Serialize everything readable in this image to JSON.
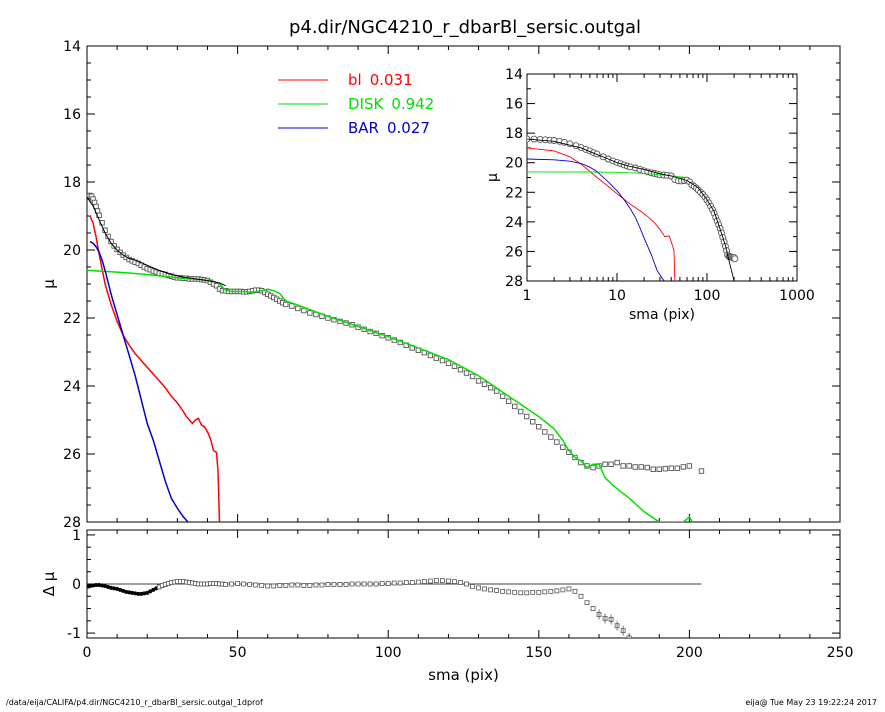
{
  "figure": {
    "title": "p4.dir/NGC4210_r_dbarBl_sersic.outgal",
    "footer_left": "/data/eija/CALIFA/p4.dir/NGC4210_r_dbarBl_sersic.outgal_1dprof",
    "footer_right": "eija@  Tue May 23 19:22:24 2017"
  },
  "colors": {
    "bl": "#ff0000",
    "disk": "#00e000",
    "bar": "#0000d0",
    "model": "#000000",
    "data": "#555555",
    "axis": "#000000"
  },
  "chart_data": [
    {
      "id": "main",
      "type": "line",
      "title": "p4.dir/NGC4210_r_dbarBl_sersic.outgal",
      "xlabel": "",
      "ylabel": "μ",
      "xlim": [
        0,
        250
      ],
      "ylim": [
        28,
        14
      ],
      "y_inverted": true,
      "xticks": [
        0,
        50,
        100,
        150,
        200,
        250
      ],
      "yticks": [
        14,
        16,
        18,
        20,
        22,
        24,
        26,
        28
      ],
      "ytick_labels": [
        "14",
        "16",
        "18",
        "20",
        "22",
        "24",
        "26",
        "28"
      ],
      "legend": [
        {
          "name": "bl",
          "value": "0.031",
          "color": "#ff0000"
        },
        {
          "name": "DISK",
          "value": "0.942",
          "color": "#00e000"
        },
        {
          "name": "BAR",
          "value": "0.027",
          "color": "#0000d0"
        }
      ],
      "legend_position": "top-center",
      "series": [
        {
          "name": "bl",
          "color": "#ff0000",
          "x": [
            1,
            2,
            3,
            4,
            6,
            8,
            10,
            12,
            14,
            16,
            18,
            20,
            22,
            24,
            26,
            28,
            30,
            32,
            33,
            34,
            35,
            36,
            37,
            38,
            39,
            40,
            41,
            42,
            43,
            43.5,
            44
          ],
          "y": [
            19.0,
            19.2,
            19.6,
            20.1,
            21.0,
            21.6,
            22.1,
            22.5,
            22.8,
            23.05,
            23.25,
            23.45,
            23.65,
            23.85,
            24.05,
            24.3,
            24.5,
            24.75,
            24.9,
            25.0,
            25.1,
            25.0,
            24.95,
            25.15,
            25.2,
            25.35,
            25.55,
            25.9,
            25.95,
            26.5,
            28.0
          ]
        },
        {
          "name": "DISK",
          "color": "#00e000",
          "x": [
            0,
            10,
            20,
            30,
            38,
            42,
            44,
            46,
            48,
            50,
            52,
            54,
            56,
            58,
            60,
            62,
            64,
            66,
            70,
            80,
            90,
            100,
            110,
            120,
            130,
            140,
            150,
            155,
            158,
            160,
            162,
            164,
            166,
            168,
            170,
            172,
            175,
            180,
            185,
            190,
            195,
            198,
            200,
            201
          ],
          "y": [
            20.6,
            20.65,
            20.72,
            20.82,
            20.87,
            20.92,
            21.0,
            21.18,
            21.22,
            21.22,
            21.22,
            21.24,
            21.23,
            21.2,
            21.15,
            21.2,
            21.28,
            21.5,
            21.62,
            21.95,
            22.25,
            22.55,
            22.88,
            23.22,
            23.7,
            24.3,
            24.9,
            25.25,
            25.6,
            25.9,
            26.1,
            26.2,
            26.4,
            26.3,
            26.3,
            26.7,
            26.95,
            27.3,
            27.7,
            28.0,
            28.0,
            28.0,
            27.85,
            28.0
          ]
        },
        {
          "name": "BAR",
          "color": "#0000d0",
          "x": [
            1,
            2,
            3,
            4,
            5,
            6,
            8,
            10,
            12,
            14,
            16,
            18,
            20,
            22,
            24,
            26,
            28,
            30,
            32,
            33.5
          ],
          "y": [
            19.75,
            19.8,
            19.9,
            20.05,
            20.3,
            20.6,
            21.3,
            21.9,
            22.5,
            23.1,
            23.7,
            24.4,
            25.1,
            25.6,
            26.2,
            26.8,
            27.3,
            27.6,
            27.85,
            28.0
          ]
        },
        {
          "name": "model",
          "color": "#000000",
          "x": [
            0,
            2,
            4,
            6,
            8,
            10,
            12,
            14,
            16,
            18,
            20,
            24,
            28,
            32,
            36,
            40,
            44,
            46
          ],
          "y": [
            18.45,
            18.7,
            19.1,
            19.5,
            19.8,
            20.0,
            20.15,
            20.25,
            20.3,
            20.37,
            20.45,
            20.6,
            20.72,
            20.8,
            20.85,
            20.9,
            20.97,
            21.05
          ]
        }
      ],
      "points": {
        "name": "data",
        "x": [
          0.5,
          1,
          1.5,
          2,
          2.5,
          3,
          3.5,
          4,
          5,
          6,
          7,
          8,
          9,
          10,
          11,
          12,
          13,
          14,
          15,
          16,
          17,
          18,
          19,
          20,
          21,
          22,
          23,
          24,
          25,
          26,
          27,
          28,
          29,
          30,
          31,
          32,
          33,
          34,
          35,
          36,
          37,
          38,
          39,
          40,
          41,
          42,
          43,
          44,
          45,
          46,
          47,
          48,
          49,
          50,
          51,
          52,
          53,
          54,
          55,
          56,
          57,
          58,
          59,
          60,
          61,
          62,
          63,
          64,
          65,
          66,
          68,
          70,
          72,
          74,
          76,
          78,
          80,
          82,
          84,
          86,
          88,
          90,
          92,
          94,
          96,
          98,
          100,
          102,
          104,
          106,
          108,
          110,
          112,
          114,
          116,
          118,
          120,
          122,
          124,
          126,
          128,
          130,
          132,
          134,
          136,
          138,
          140,
          142,
          144,
          146,
          148,
          150,
          152,
          154,
          156,
          158,
          160,
          162,
          164,
          166,
          168,
          170,
          172,
          174,
          176,
          178,
          180,
          182,
          184,
          186,
          188,
          190,
          192,
          194,
          196,
          198,
          200,
          204
        ],
        "y": [
          18.4,
          18.4,
          18.42,
          18.5,
          18.6,
          18.72,
          18.85,
          18.98,
          19.2,
          19.42,
          19.6,
          19.75,
          19.88,
          19.98,
          20.07,
          20.15,
          20.22,
          20.28,
          20.32,
          20.36,
          20.4,
          20.45,
          20.5,
          20.55,
          20.58,
          20.62,
          20.65,
          20.68,
          20.7,
          20.72,
          20.75,
          20.77,
          20.8,
          20.82,
          20.82,
          20.83,
          20.83,
          20.85,
          20.85,
          20.85,
          20.85,
          20.87,
          20.88,
          20.9,
          20.95,
          21.0,
          21.05,
          21.15,
          21.2,
          21.2,
          21.22,
          21.22,
          21.22,
          21.22,
          21.22,
          21.23,
          21.23,
          21.22,
          21.2,
          21.18,
          21.18,
          21.2,
          21.25,
          21.3,
          21.35,
          21.4,
          21.45,
          21.5,
          21.55,
          21.6,
          21.65,
          21.72,
          21.78,
          21.85,
          21.9,
          21.95,
          22.0,
          22.05,
          22.1,
          22.15,
          22.2,
          22.27,
          22.33,
          22.4,
          22.45,
          22.52,
          22.58,
          22.65,
          22.72,
          22.8,
          22.88,
          22.95,
          23.02,
          23.1,
          23.18,
          23.25,
          23.33,
          23.42,
          23.52,
          23.62,
          23.72,
          23.85,
          23.95,
          24.05,
          24.15,
          24.3,
          24.45,
          24.6,
          24.75,
          24.9,
          25.05,
          25.2,
          25.35,
          25.5,
          25.65,
          25.8,
          25.95,
          26.1,
          26.25,
          26.35,
          26.4,
          26.35,
          26.3,
          26.3,
          26.25,
          26.35,
          26.35,
          26.38,
          26.38,
          26.4,
          26.45,
          26.45,
          26.43,
          26.42,
          26.42,
          26.38,
          26.35,
          26.5
        ]
      }
    },
    {
      "id": "residual",
      "type": "scatter",
      "title": "",
      "xlabel": "sma (pix)",
      "ylabel": "Δ μ",
      "xlim": [
        0,
        250
      ],
      "ylim": [
        -1.1,
        1.1
      ],
      "xticks": [
        0,
        50,
        100,
        150,
        200,
        250
      ],
      "yticks": [
        -1,
        0,
        1
      ],
      "zero_line_xmax": 204,
      "points": {
        "x": [
          0.5,
          1,
          2,
          3,
          4,
          5,
          6,
          7,
          8,
          9,
          10,
          11,
          12,
          13,
          14,
          15,
          16,
          17,
          18,
          19,
          20,
          21,
          22,
          23,
          24,
          25,
          26,
          27,
          28,
          29,
          30,
          31,
          32,
          33,
          34,
          35,
          36,
          37,
          38,
          39,
          40,
          41,
          42,
          43,
          44,
          45,
          46,
          48,
          50,
          52,
          54,
          56,
          58,
          60,
          62,
          64,
          66,
          68,
          70,
          72,
          74,
          76,
          78,
          80,
          82,
          84,
          86,
          88,
          90,
          92,
          94,
          96,
          98,
          100,
          102,
          104,
          106,
          108,
          110,
          112,
          114,
          116,
          118,
          120,
          122,
          124,
          126,
          128,
          130,
          132,
          134,
          136,
          138,
          140,
          142,
          144,
          146,
          148,
          150,
          152,
          154,
          156,
          158,
          160,
          162,
          164,
          166,
          168,
          170,
          172,
          174,
          176,
          178,
          180
        ],
        "y": [
          -0.05,
          -0.04,
          -0.03,
          -0.02,
          -0.02,
          -0.03,
          -0.04,
          -0.06,
          -0.08,
          -0.09,
          -0.1,
          -0.12,
          -0.14,
          -0.16,
          -0.17,
          -0.18,
          -0.19,
          -0.2,
          -0.2,
          -0.19,
          -0.18,
          -0.15,
          -0.12,
          -0.09,
          -0.06,
          -0.03,
          -0.01,
          0.01,
          0.03,
          0.04,
          0.05,
          0.05,
          0.05,
          0.04,
          0.03,
          0.02,
          0.01,
          0.0,
          0.0,
          0.0,
          0.0,
          0.01,
          0.01,
          0.01,
          0.0,
          0.0,
          -0.01,
          0.0,
          0.01,
          0.0,
          -0.01,
          -0.02,
          -0.03,
          -0.04,
          -0.04,
          -0.03,
          -0.03,
          -0.02,
          -0.02,
          -0.03,
          -0.03,
          -0.02,
          -0.02,
          -0.01,
          -0.01,
          -0.01,
          -0.01,
          0.0,
          0.0,
          0.0,
          0.0,
          0.0,
          0.01,
          0.01,
          0.02,
          0.02,
          0.03,
          0.03,
          0.04,
          0.05,
          0.06,
          0.07,
          0.07,
          0.06,
          0.05,
          0.03,
          0.0,
          -0.05,
          -0.08,
          -0.1,
          -0.12,
          -0.13,
          -0.15,
          -0.16,
          -0.17,
          -0.18,
          -0.18,
          -0.17,
          -0.17,
          -0.16,
          -0.15,
          -0.14,
          -0.12,
          -0.1,
          -0.15,
          -0.25,
          -0.38,
          -0.5,
          -0.62,
          -0.7,
          -0.72,
          -0.85,
          -0.95,
          -1.1
        ]
      }
    },
    {
      "id": "inset",
      "type": "line",
      "title": "",
      "xlabel": "sma (pix)",
      "ylabel": "μ",
      "xscale": "log",
      "xlim": [
        1,
        1000
      ],
      "ylim": [
        28,
        14
      ],
      "y_inverted": true,
      "xticks": [
        1,
        10,
        100,
        1000
      ],
      "xtick_labels": [
        "1",
        "10",
        "100",
        "1000"
      ],
      "yticks": [
        14,
        16,
        18,
        20,
        22,
        24,
        26,
        28
      ],
      "series": [
        {
          "name": "bl",
          "color": "#ff0000",
          "x": [
            1,
            2,
            3,
            4,
            6,
            8,
            10,
            14,
            18,
            22,
            26,
            30,
            34,
            38,
            41,
            43,
            44
          ],
          "y": [
            19.0,
            19.2,
            19.6,
            20.1,
            21.0,
            21.6,
            22.1,
            22.8,
            23.25,
            23.65,
            24.05,
            24.5,
            25.0,
            24.95,
            25.55,
            25.95,
            28.0
          ]
        },
        {
          "name": "DISK",
          "color": "#00e000",
          "x": [
            1,
            5,
            10,
            20,
            30,
            40,
            50,
            60
          ],
          "y": [
            20.62,
            20.63,
            20.65,
            20.72,
            20.82,
            20.88,
            20.95,
            21.0
          ]
        },
        {
          "name": "BAR",
          "color": "#0000d0",
          "x": [
            1,
            2,
            3,
            4,
            5,
            6,
            8,
            10,
            12,
            14,
            16,
            18,
            20,
            24,
            28,
            32,
            33.5
          ],
          "y": [
            19.75,
            19.8,
            19.9,
            20.05,
            20.3,
            20.6,
            21.3,
            21.9,
            22.5,
            23.1,
            23.7,
            24.4,
            25.1,
            26.2,
            27.3,
            27.85,
            28.0
          ]
        },
        {
          "name": "model",
          "color": "#000000",
          "x": [
            1,
            2,
            4,
            6,
            8,
            10,
            14,
            20,
            28,
            40,
            60,
            80,
            100,
            120,
            140,
            160,
            180,
            200
          ],
          "y": [
            18.4,
            18.55,
            19.0,
            19.45,
            19.75,
            20.0,
            20.25,
            20.45,
            20.7,
            20.9,
            21.2,
            21.7,
            22.5,
            23.3,
            24.5,
            25.6,
            26.9,
            28.0
          ]
        }
      ],
      "points": {
        "name": "data",
        "x": [
          1,
          1.2,
          1.4,
          1.6,
          1.8,
          2,
          2.3,
          2.6,
          3,
          3.5,
          4,
          4.5,
          5,
          5.5,
          6,
          7,
          8,
          9,
          10,
          11,
          12,
          13,
          14,
          16,
          18,
          20,
          22,
          24,
          26,
          28,
          30,
          33,
          36,
          40,
          44,
          48,
          52,
          56,
          60,
          64,
          68,
          72,
          76,
          80,
          85,
          90,
          95,
          100,
          105,
          110,
          115,
          120,
          125,
          130,
          135,
          140,
          145,
          150,
          155,
          160,
          165,
          170,
          175,
          180,
          185,
          190,
          195,
          200,
          204
        ],
        "y": [
          18.4,
          18.4,
          18.42,
          18.45,
          18.48,
          18.5,
          18.55,
          18.62,
          18.72,
          18.85,
          18.98,
          19.1,
          19.2,
          19.32,
          19.42,
          19.6,
          19.75,
          19.88,
          19.98,
          20.07,
          20.15,
          20.22,
          20.28,
          20.36,
          20.45,
          20.55,
          20.62,
          20.68,
          20.72,
          20.77,
          20.82,
          20.83,
          20.85,
          20.9,
          21.15,
          21.22,
          21.23,
          21.2,
          21.18,
          21.3,
          21.5,
          21.6,
          21.72,
          21.85,
          22.0,
          22.15,
          22.33,
          22.52,
          22.72,
          22.95,
          23.18,
          23.42,
          23.7,
          23.95,
          24.2,
          24.45,
          24.75,
          25.05,
          25.35,
          25.65,
          25.95,
          26.25,
          26.35,
          26.35,
          26.38,
          26.4,
          26.45,
          26.42,
          26.5
        ]
      }
    }
  ]
}
